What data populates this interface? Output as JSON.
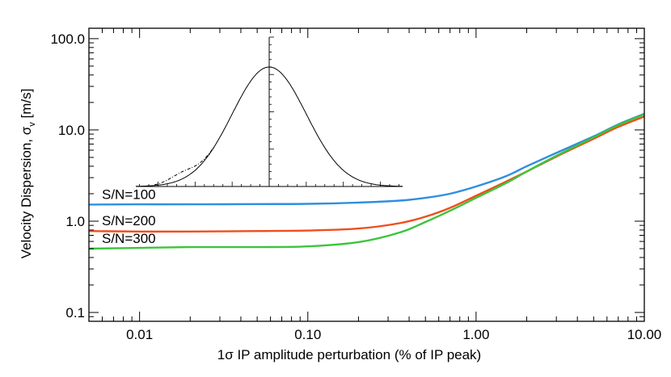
{
  "chart_data": {
    "type": "line",
    "title": "",
    "xlabel": "1σ IP amplitude perturbation (% of IP peak)",
    "ylabel_main": "Velocity Dispersion, σ",
    "ylabel_sub": "v",
    "ylabel_unit": " [m/s]",
    "x_scale": "log",
    "y_scale": "log",
    "xlim": [
      0.005,
      10.0
    ],
    "ylim": [
      0.08,
      130
    ],
    "x_ticks": [
      {
        "value": 0.01,
        "label": "0.01"
      },
      {
        "value": 0.1,
        "label": "0.10"
      },
      {
        "value": 1.0,
        "label": "1.00"
      },
      {
        "value": 10.0,
        "label": "10.00"
      }
    ],
    "y_ticks": [
      {
        "value": 0.1,
        "label": "0.1"
      },
      {
        "value": 1.0,
        "label": "1.0"
      },
      {
        "value": 10.0,
        "label": "10.0"
      },
      {
        "value": 100.0,
        "label": "100.0"
      }
    ],
    "grid": false,
    "series": [
      {
        "name": "S/N=100",
        "color": "#2e8fe0",
        "points": [
          [
            0.005,
            1.52
          ],
          [
            0.01,
            1.53
          ],
          [
            0.02,
            1.53
          ],
          [
            0.05,
            1.54
          ],
          [
            0.1,
            1.55
          ],
          [
            0.2,
            1.6
          ],
          [
            0.35,
            1.68
          ],
          [
            0.5,
            1.8
          ],
          [
            0.7,
            2.0
          ],
          [
            1.0,
            2.4
          ],
          [
            1.5,
            3.1
          ],
          [
            2.0,
            4.0
          ],
          [
            3.0,
            5.6
          ],
          [
            5.0,
            8.5
          ],
          [
            7.0,
            11.5
          ],
          [
            10.0,
            15.0
          ]
        ]
      },
      {
        "name": "S/N=200",
        "color": "#f04e1c",
        "points": [
          [
            0.005,
            0.78
          ],
          [
            0.01,
            0.77
          ],
          [
            0.02,
            0.77
          ],
          [
            0.05,
            0.78
          ],
          [
            0.1,
            0.79
          ],
          [
            0.2,
            0.83
          ],
          [
            0.35,
            0.95
          ],
          [
            0.5,
            1.12
          ],
          [
            0.7,
            1.4
          ],
          [
            1.0,
            1.9
          ],
          [
            1.5,
            2.7
          ],
          [
            2.0,
            3.5
          ],
          [
            3.0,
            5.1
          ],
          [
            5.0,
            8.0
          ],
          [
            7.0,
            10.8
          ],
          [
            10.0,
            14.0
          ]
        ]
      },
      {
        "name": "S/N=300",
        "color": "#3cc43c",
        "points": [
          [
            0.005,
            0.5
          ],
          [
            0.01,
            0.51
          ],
          [
            0.02,
            0.52
          ],
          [
            0.05,
            0.52
          ],
          [
            0.1,
            0.53
          ],
          [
            0.2,
            0.59
          ],
          [
            0.35,
            0.75
          ],
          [
            0.5,
            0.98
          ],
          [
            0.7,
            1.3
          ],
          [
            1.0,
            1.8
          ],
          [
            1.5,
            2.6
          ],
          [
            2.0,
            3.5
          ],
          [
            3.0,
            5.2
          ],
          [
            5.0,
            8.3
          ],
          [
            7.0,
            11.3
          ],
          [
            10.0,
            14.8
          ]
        ]
      }
    ],
    "inset": {
      "type": "line",
      "description_free": true,
      "gaussian": {
        "center": 0.0,
        "sigma": 1.0,
        "peak": 1.0
      },
      "perturbation": {
        "center": -2.35,
        "sigma": 0.35,
        "amplitude": 0.06
      },
      "xlim": [
        -3.6,
        3.6
      ]
    }
  }
}
